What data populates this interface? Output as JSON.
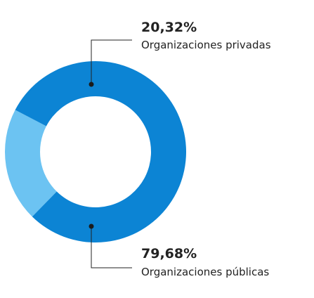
{
  "chart_data": {
    "type": "pie",
    "donut": true,
    "slices": [
      {
        "percent_label": "20,32%",
        "label": "Organizaciones privadas",
        "value": 20.32,
        "color": "#6cc3f2"
      },
      {
        "percent_label": "79,68%",
        "label": "Organizaciones públicas",
        "value": 79.68,
        "color": "#0c84d4"
      }
    ]
  }
}
